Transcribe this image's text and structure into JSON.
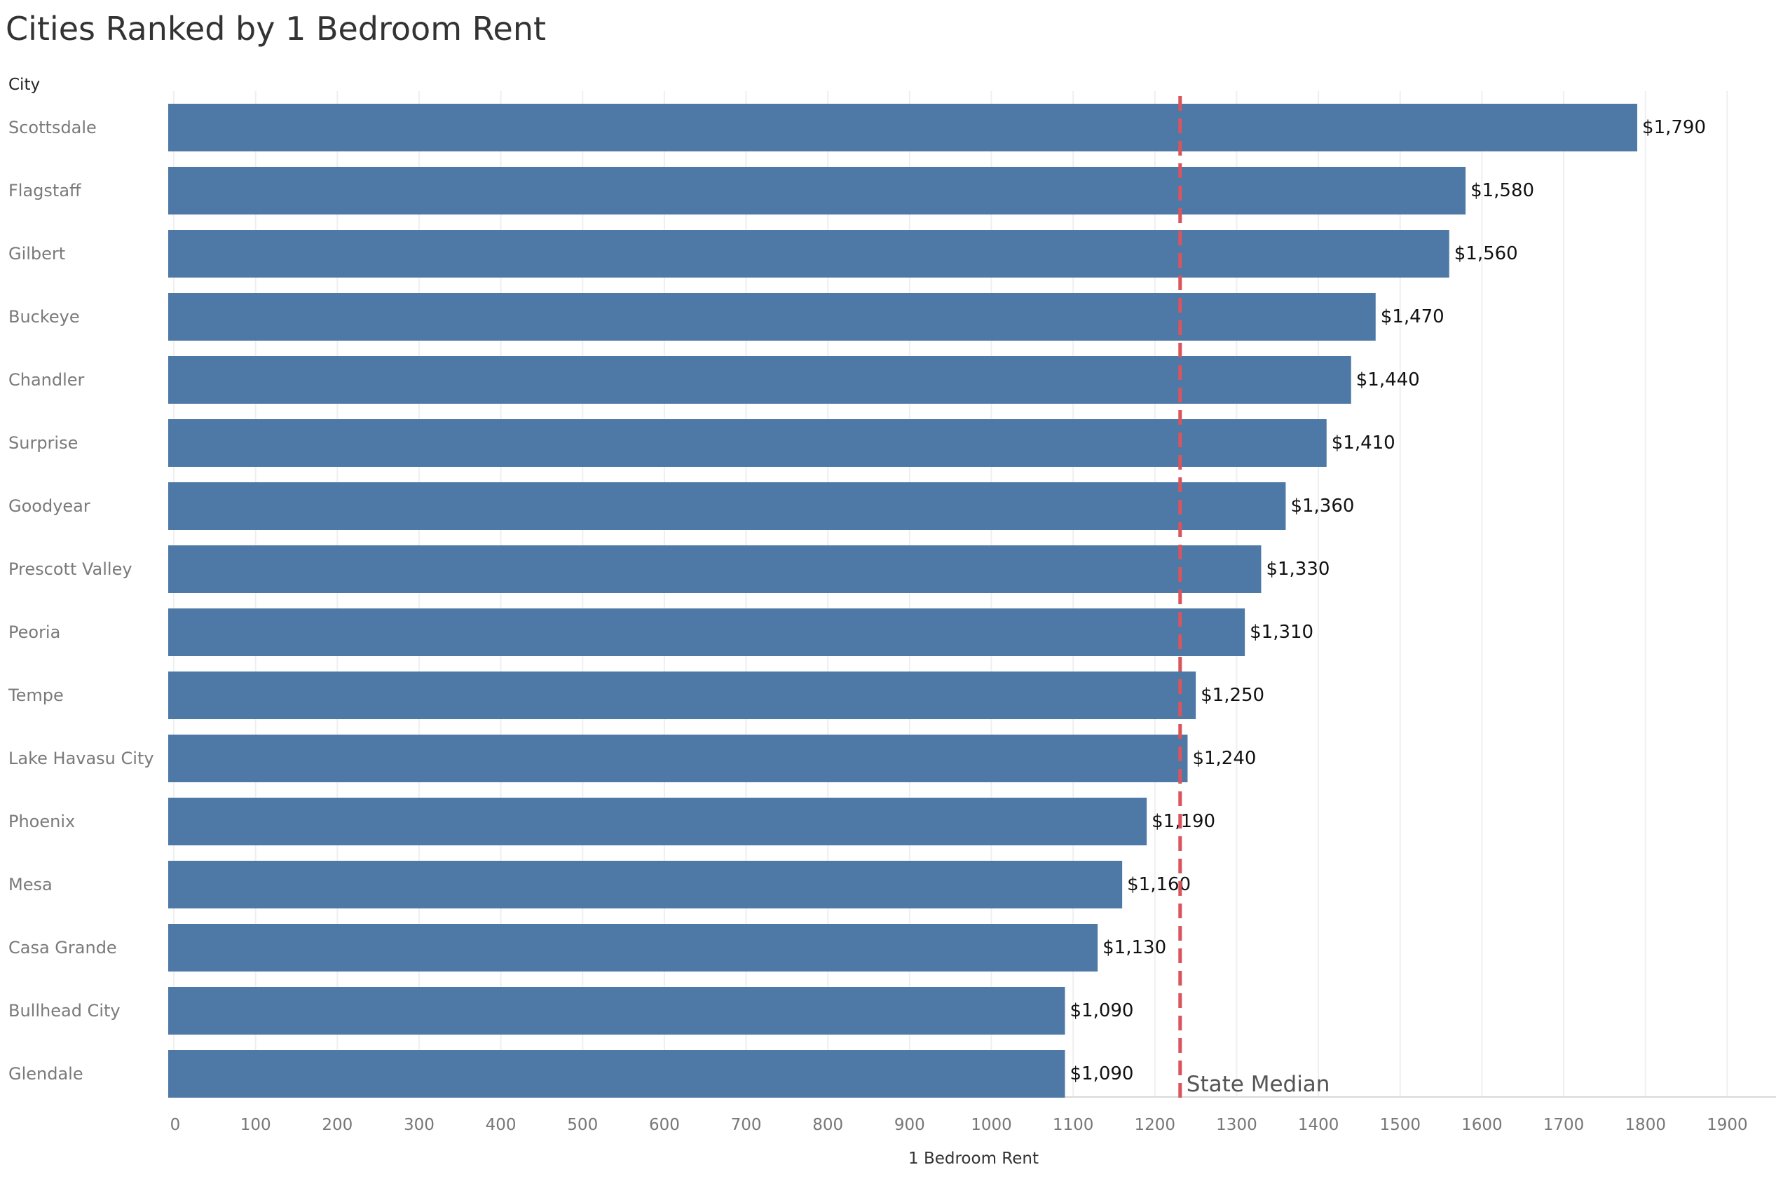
{
  "chart_data": {
    "type": "bar",
    "orientation": "horizontal",
    "title": "Cities Ranked by 1 Bedroom Rent",
    "category_header": "City",
    "xlabel": "1 Bedroom Rent",
    "xlim": [
      0,
      1950
    ],
    "x_ticks": [
      "0",
      "100",
      "200",
      "300",
      "400",
      "500",
      "600",
      "700",
      "800",
      "900",
      "1000",
      "1100",
      "1200",
      "1300",
      "1400",
      "1500",
      "1600",
      "1700",
      "1800",
      "1900"
    ],
    "categories": [
      "Scottsdale",
      "Flagstaff",
      "Gilbert",
      "Buckeye",
      "Chandler",
      "Surprise",
      "Goodyear",
      "Prescott Valley",
      "Peoria",
      "Tempe",
      "Lake Havasu City",
      "Phoenix",
      "Mesa",
      "Casa Grande",
      "Bullhead City",
      "Glendale"
    ],
    "values": [
      1790,
      1580,
      1560,
      1470,
      1440,
      1410,
      1360,
      1330,
      1310,
      1250,
      1240,
      1190,
      1160,
      1130,
      1090,
      1090
    ],
    "value_labels": [
      "$1,790",
      "$1,580",
      "$1,560",
      "$1,470",
      "$1,440",
      "$1,410",
      "$1,360",
      "$1,330",
      "$1,310",
      "$1,250",
      "$1,240",
      "$1,190",
      "$1,160",
      "$1,130",
      "$1,090",
      "$1,090"
    ],
    "reference_line": {
      "label": "State Median",
      "value": 1230,
      "style": "dashed",
      "color": "#d9545c"
    },
    "bar_color": "#4e79a7",
    "grid": true,
    "legend": "none"
  }
}
